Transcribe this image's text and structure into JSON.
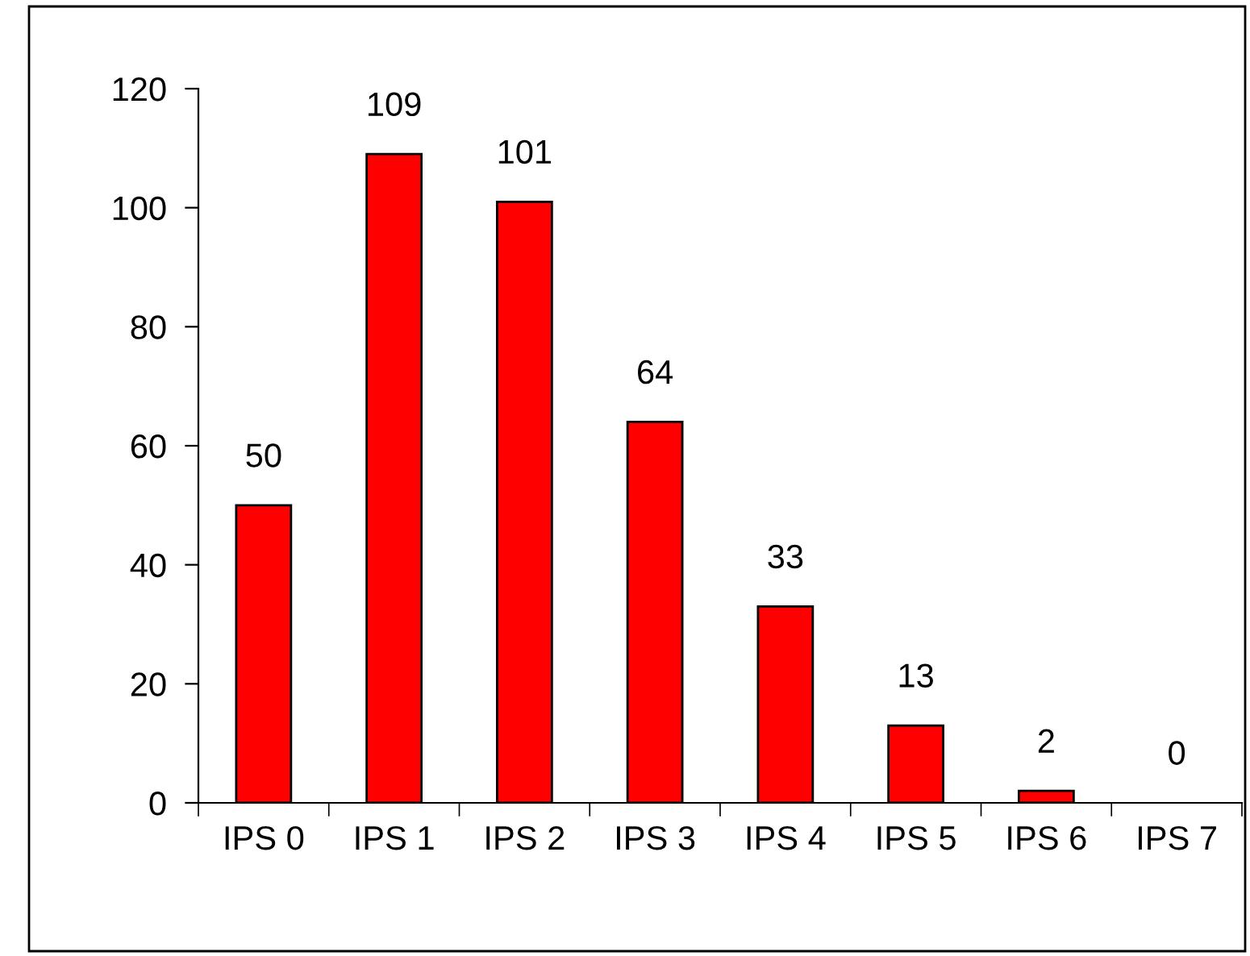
{
  "chart_data": {
    "type": "bar",
    "categories": [
      "IPS 0",
      "IPS 1",
      "IPS 2",
      "IPS 3",
      "IPS 4",
      "IPS 5",
      "IPS 6",
      "IPS 7"
    ],
    "values": [
      50,
      109,
      101,
      64,
      33,
      13,
      2,
      0
    ],
    "color": "#ff0000",
    "ylim": [
      0,
      120
    ],
    "yticks": [
      0,
      20,
      40,
      60,
      80,
      100,
      120
    ],
    "data_labels": true,
    "grid": false
  }
}
